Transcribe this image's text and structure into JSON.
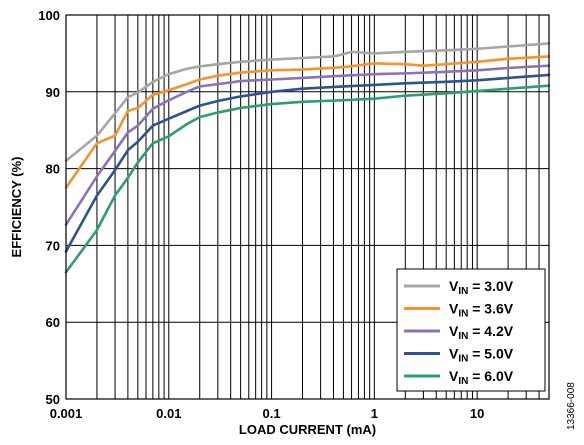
{
  "chart_data": {
    "type": "line",
    "xlabel": "LOAD CURRENT (mA)",
    "ylabel": "EFFICIENCY (%)",
    "x_scale": "log",
    "xlim": [
      0.001,
      50
    ],
    "ylim": [
      50,
      100
    ],
    "x_ticks": [
      {
        "value": 0.001,
        "label": "0.001"
      },
      {
        "value": 0.01,
        "label": "0.01"
      },
      {
        "value": 0.1,
        "label": "0.1"
      },
      {
        "value": 1,
        "label": "1"
      },
      {
        "value": 10,
        "label": "10"
      }
    ],
    "y_ticks": [
      {
        "value": 50,
        "label": "50"
      },
      {
        "value": 60,
        "label": "60"
      },
      {
        "value": 70,
        "label": "70"
      },
      {
        "value": 80,
        "label": "80"
      },
      {
        "value": 90,
        "label": "90"
      },
      {
        "value": 100,
        "label": "100"
      }
    ],
    "grid": true,
    "legend_position": "bottom-right",
    "series": [
      {
        "name": "3.0V",
        "color": "#a6a6a6",
        "x": [
          0.001,
          0.002,
          0.003,
          0.004,
          0.005,
          0.007,
          0.01,
          0.015,
          0.02,
          0.03,
          0.05,
          0.1,
          0.2,
          0.4,
          0.5,
          0.6,
          1,
          2,
          5,
          10,
          20,
          50
        ],
        "y": [
          81.0,
          84.3,
          87.2,
          89.3,
          89.9,
          91.3,
          92.3,
          93.0,
          93.3,
          93.6,
          93.9,
          94.2,
          94.4,
          94.6,
          94.9,
          95.2,
          95.0,
          95.2,
          95.4,
          95.6,
          95.9,
          96.3
        ]
      },
      {
        "name": "3.6V",
        "color": "#f7922e",
        "x": [
          0.001,
          0.002,
          0.003,
          0.004,
          0.005,
          0.007,
          0.01,
          0.015,
          0.02,
          0.03,
          0.05,
          0.1,
          0.2,
          0.5,
          1,
          2,
          3,
          5,
          10,
          20,
          50
        ],
        "y": [
          77.5,
          83.3,
          84.3,
          87.5,
          87.9,
          89.6,
          90.2,
          91.0,
          91.6,
          92.1,
          92.5,
          92.8,
          92.9,
          93.2,
          93.7,
          93.6,
          93.4,
          93.6,
          93.9,
          94.3,
          94.6
        ]
      },
      {
        "name": "4.2V",
        "color": "#8c72b8",
        "x": [
          0.001,
          0.002,
          0.003,
          0.004,
          0.005,
          0.007,
          0.01,
          0.015,
          0.02,
          0.03,
          0.05,
          0.1,
          0.2,
          0.5,
          1,
          2,
          5,
          10,
          20,
          50
        ],
        "y": [
          72.7,
          79.0,
          82.3,
          84.7,
          85.6,
          87.8,
          88.9,
          90.0,
          90.7,
          91.0,
          91.4,
          91.6,
          91.8,
          92.1,
          92.3,
          92.4,
          92.6,
          92.8,
          93.1,
          93.4
        ]
      },
      {
        "name": "5.0V",
        "color": "#2e5394",
        "x": [
          0.001,
          0.002,
          0.003,
          0.004,
          0.005,
          0.007,
          0.01,
          0.015,
          0.02,
          0.03,
          0.05,
          0.1,
          0.2,
          0.5,
          1,
          2,
          5,
          10,
          20,
          50
        ],
        "y": [
          69.2,
          76.5,
          79.8,
          82.4,
          83.5,
          85.6,
          86.5,
          87.5,
          88.2,
          88.8,
          89.4,
          90.0,
          90.4,
          90.7,
          90.9,
          91.1,
          91.3,
          91.5,
          91.8,
          92.2
        ]
      },
      {
        "name": "6.0V",
        "color": "#2d9e6d",
        "x": [
          0.001,
          0.002,
          0.003,
          0.004,
          0.005,
          0.007,
          0.01,
          0.015,
          0.02,
          0.03,
          0.05,
          0.1,
          0.2,
          0.5,
          1,
          2,
          5,
          10,
          20,
          50
        ],
        "y": [
          66.5,
          72.0,
          76.5,
          78.8,
          80.8,
          83.3,
          84.2,
          85.8,
          86.7,
          87.3,
          87.9,
          88.4,
          88.7,
          88.9,
          89.1,
          89.5,
          89.8,
          90.1,
          90.4,
          90.8
        ]
      }
    ],
    "legend": [
      {
        "prefix": "V",
        "sub": "IN",
        "value": " = 3.0V"
      },
      {
        "prefix": "V",
        "sub": "IN",
        "value": " = 3.6V"
      },
      {
        "prefix": "V",
        "sub": "IN",
        "value": " = 4.2V"
      },
      {
        "prefix": "V",
        "sub": "IN",
        "value": " = 5.0V"
      },
      {
        "prefix": "V",
        "sub": "IN",
        "value": " = 6.0V"
      }
    ],
    "figure_id": "13366-008"
  }
}
